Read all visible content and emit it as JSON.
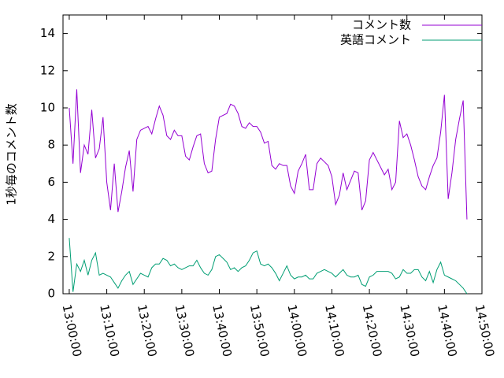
{
  "chart_data": {
    "type": "line",
    "ylabel": "1秒毎のコメント数",
    "x": [
      "13:00:00",
      "13:01:00",
      "13:02:00",
      "13:03:00",
      "13:04:00",
      "13:05:00",
      "13:06:00",
      "13:07:00",
      "13:08:00",
      "13:09:00",
      "13:10:00",
      "13:11:00",
      "13:12:00",
      "13:13:00",
      "13:14:00",
      "13:15:00",
      "13:16:00",
      "13:17:00",
      "13:18:00",
      "13:19:00",
      "13:20:00",
      "13:21:00",
      "13:22:00",
      "13:23:00",
      "13:24:00",
      "13:25:00",
      "13:26:00",
      "13:27:00",
      "13:28:00",
      "13:29:00",
      "13:30:00",
      "13:31:00",
      "13:32:00",
      "13:33:00",
      "13:34:00",
      "13:35:00",
      "13:36:00",
      "13:37:00",
      "13:38:00",
      "13:39:00",
      "13:40:00",
      "13:41:00",
      "13:42:00",
      "13:43:00",
      "13:44:00",
      "13:45:00",
      "13:46:00",
      "13:47:00",
      "13:48:00",
      "13:49:00",
      "13:50:00",
      "13:51:00",
      "13:52:00",
      "13:53:00",
      "13:54:00",
      "13:55:00",
      "13:56:00",
      "13:57:00",
      "13:58:00",
      "13:59:00",
      "14:00:00",
      "14:01:00",
      "14:02:00",
      "14:03:00",
      "14:04:00",
      "14:05:00",
      "14:06:00",
      "14:07:00",
      "14:08:00",
      "14:09:00",
      "14:10:00",
      "14:11:00",
      "14:12:00",
      "14:13:00",
      "14:14:00",
      "14:15:00",
      "14:16:00",
      "14:17:00",
      "14:18:00",
      "14:19:00",
      "14:20:00",
      "14:21:00",
      "14:22:00",
      "14:23:00",
      "14:24:00",
      "14:25:00",
      "14:26:00",
      "14:27:00",
      "14:28:00",
      "14:29:00",
      "14:30:00",
      "14:31:00",
      "14:32:00",
      "14:33:00",
      "14:34:00",
      "14:35:00",
      "14:36:00",
      "14:37:00",
      "14:38:00",
      "14:39:00",
      "14:40:00",
      "14:41:00",
      "14:42:00",
      "14:43:00",
      "14:44:00",
      "14:45:00",
      "14:46:00"
    ],
    "series": [
      {
        "name": "コメント数",
        "color": "#9400d3",
        "values": [
          10.0,
          7.0,
          11.0,
          6.5,
          8.0,
          7.5,
          9.9,
          7.3,
          7.8,
          9.5,
          6.0,
          4.5,
          7.0,
          4.4,
          5.5,
          6.8,
          7.7,
          5.5,
          8.3,
          8.8,
          8.9,
          9.0,
          8.6,
          9.4,
          10.1,
          9.6,
          8.5,
          8.3,
          8.8,
          8.5,
          8.5,
          7.4,
          7.2,
          7.9,
          8.5,
          8.6,
          7.0,
          6.5,
          6.6,
          8.3,
          9.5,
          9.6,
          9.7,
          10.2,
          10.1,
          9.7,
          9.0,
          8.9,
          9.2,
          9.0,
          9.0,
          8.7,
          8.1,
          8.2,
          6.9,
          6.7,
          7.0,
          6.9,
          6.9,
          5.8,
          5.4,
          6.6,
          7.0,
          7.5,
          5.6,
          5.6,
          7.0,
          7.3,
          7.1,
          6.9,
          6.3,
          4.8,
          5.3,
          6.5,
          5.6,
          6.1,
          6.6,
          6.5,
          4.5,
          5.0,
          7.2,
          7.6,
          7.2,
          6.8,
          6.4,
          6.7,
          5.6,
          6.0,
          9.3,
          8.4,
          8.6,
          8.0,
          7.2,
          6.3,
          5.8,
          5.6,
          6.3,
          6.9,
          7.3,
          8.7,
          10.7,
          5.1,
          6.5,
          8.3,
          9.4,
          10.4,
          4.0
        ]
      },
      {
        "name": "英語コメント",
        "color": "#009e73",
        "values": [
          3.0,
          0.1,
          1.6,
          1.2,
          1.8,
          1.0,
          1.8,
          2.2,
          1.0,
          1.1,
          1.0,
          0.9,
          0.6,
          0.3,
          0.7,
          1.0,
          1.2,
          0.5,
          0.8,
          1.1,
          1.0,
          0.9,
          1.4,
          1.6,
          1.6,
          1.9,
          1.8,
          1.5,
          1.6,
          1.4,
          1.3,
          1.4,
          1.5,
          1.5,
          1.8,
          1.4,
          1.1,
          1.0,
          1.3,
          2.0,
          2.1,
          1.9,
          1.7,
          1.3,
          1.4,
          1.2,
          1.4,
          1.5,
          1.8,
          2.2,
          2.3,
          1.6,
          1.5,
          1.6,
          1.4,
          1.1,
          0.7,
          1.1,
          1.5,
          1.0,
          0.8,
          0.9,
          0.9,
          1.0,
          0.8,
          0.8,
          1.1,
          1.2,
          1.3,
          1.2,
          1.1,
          0.9,
          1.1,
          1.3,
          1.0,
          0.9,
          0.9,
          1.0,
          0.5,
          0.4,
          0.9,
          1.0,
          1.2,
          1.2,
          1.2,
          1.2,
          1.1,
          0.8,
          0.9,
          1.3,
          1.1,
          1.1,
          1.3,
          1.3,
          0.9,
          0.7,
          1.2,
          0.6,
          1.3,
          1.7,
          1.0,
          0.9,
          0.8,
          0.7,
          0.5,
          0.3,
          0.0
        ]
      }
    ],
    "xlim": [
      "12:58:20",
      "14:50:00"
    ],
    "xticks": [
      "13:00:00",
      "13:10:00",
      "13:20:00",
      "13:30:00",
      "13:40:00",
      "13:50:00",
      "14:00:00",
      "14:10:00",
      "14:20:00",
      "14:30:00",
      "14:40:00",
      "14:50:00"
    ],
    "ylim": [
      0,
      15
    ],
    "yticks": [
      0,
      2,
      4,
      6,
      8,
      10,
      12,
      14
    ],
    "legend": "upper right"
  }
}
